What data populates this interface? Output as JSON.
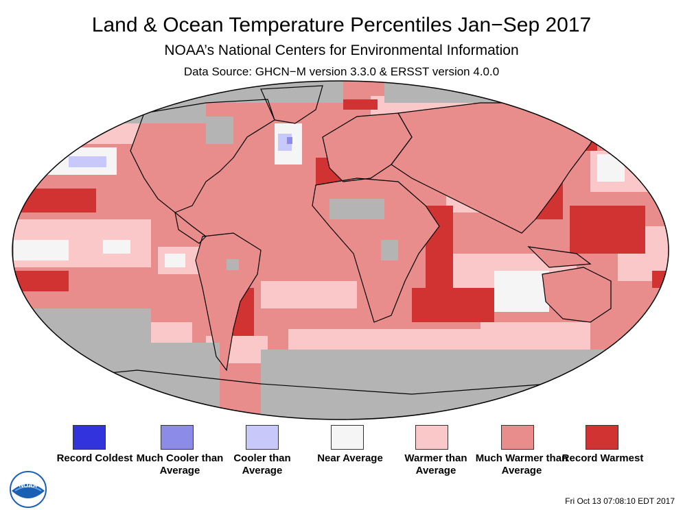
{
  "header": {
    "title": "Land & Ocean Temperature Percentiles Jan−Sep 2017",
    "subtitle": "NOAA’s National Centers for Environmental Information",
    "source": "Data Source: GHCN−M version 3.3.0 & ERSST version 4.0.0"
  },
  "legend": [
    {
      "label": "Record Coldest",
      "color": "#3333dd"
    },
    {
      "label": "Much Cooler than Average",
      "color": "#8c8ce8"
    },
    {
      "label": "Cooler than Average",
      "color": "#c8c8fa"
    },
    {
      "label": "Near Average",
      "color": "#f5f5f5"
    },
    {
      "label": "Warmer than Average",
      "color": "#fac8c8"
    },
    {
      "label": "Much Warmer than Average",
      "color": "#e88c8c"
    },
    {
      "label": "Record Warmest",
      "color": "#d13333"
    }
  ],
  "map": {
    "no_data_color": "#b4b4b4",
    "ocean_base_color": "#e88c8c"
  },
  "footer": {
    "timestamp": "Fri Oct 13 07:08:10 EDT 2017",
    "logo_text": "NOAA"
  }
}
